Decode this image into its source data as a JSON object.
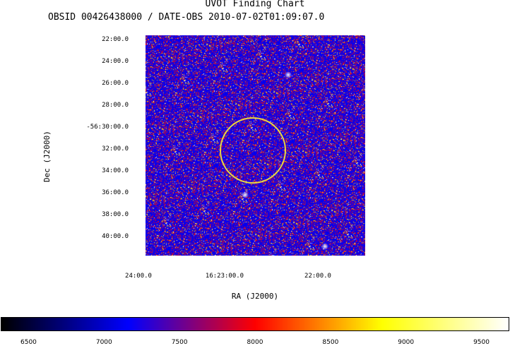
{
  "header": {
    "title": "UVOT Finding Chart",
    "subtitle": "OBSID 00426438000 / DATE-OBS 2010-07-02T01:09:07.0"
  },
  "chart_data": {
    "type": "heatmap",
    "xlabel": "RA (J2000)",
    "ylabel": "Dec (J2000)",
    "dec_ticks": [
      "22:00.0",
      "24:00.0",
      "26:00.0",
      "28:00.0",
      "-56:30:00.0",
      "32:00.0",
      "34:00.0",
      "36:00.0",
      "38:00.0",
      "40:00.0"
    ],
    "ra_ticks": [
      "24:00.0",
      "16:23:00.0",
      "22:00.0"
    ],
    "colorbar": {
      "ticks": [
        "6500",
        "7000",
        "7500",
        "8000",
        "8500",
        "9000",
        "9500"
      ],
      "range": [
        6320,
        9680
      ],
      "colors": [
        "#000000",
        "#0000ff",
        "#ff0000",
        "#ffff00",
        "#ffffff"
      ]
    },
    "target_circle_color": "#e8d840"
  }
}
